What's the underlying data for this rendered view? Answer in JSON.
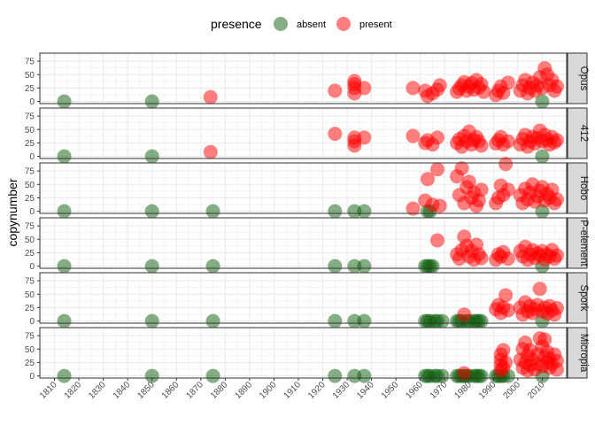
{
  "colors": {
    "absent": "#0b5e0b",
    "present": "#ff0000",
    "panel_bg": "#ffffff",
    "grid": "#ebebeb",
    "strip_bg": "#d9d9d9",
    "text": "#4d4d4d"
  },
  "chart_data": {
    "type": "scatter",
    "facet_by": "strain",
    "ylabel": "copynumber",
    "xlabel": "",
    "legend": {
      "title": "presence",
      "position": "top",
      "entries": [
        "absent",
        "present"
      ]
    },
    "xlim": [
      1804,
      2020
    ],
    "ylim": [
      -4,
      90
    ],
    "xticks": [
      1810,
      1820,
      1830,
      1840,
      1850,
      1860,
      1870,
      1880,
      1890,
      1900,
      1910,
      1920,
      1930,
      1940,
      1950,
      1960,
      1970,
      1980,
      1990,
      2000,
      2010
    ],
    "yticks": [
      0,
      25,
      50,
      75
    ],
    "point_alpha": 0.5,
    "panels": [
      {
        "label": "Opus",
        "absent": [
          [
            1814,
            0
          ],
          [
            1850,
            0
          ],
          [
            2010,
            0
          ]
        ],
        "present": [
          [
            1874,
            8
          ],
          [
            1925,
            20
          ],
          [
            1933,
            15
          ],
          [
            1933,
            25
          ],
          [
            1933,
            32
          ],
          [
            1933,
            38
          ],
          [
            1937,
            25
          ],
          [
            1957,
            25
          ],
          [
            1962,
            20
          ],
          [
            1963,
            10
          ],
          [
            1965,
            15
          ],
          [
            1967,
            22
          ],
          [
            1968,
            30
          ],
          [
            1975,
            18
          ],
          [
            1976,
            24
          ],
          [
            1977,
            30
          ],
          [
            1978,
            36
          ],
          [
            1979,
            20
          ],
          [
            1980,
            28
          ],
          [
            1981,
            34
          ],
          [
            1982,
            22
          ],
          [
            1983,
            40
          ],
          [
            1984,
            26
          ],
          [
            1985,
            32
          ],
          [
            1986,
            18
          ],
          [
            1991,
            12
          ],
          [
            1992,
            20
          ],
          [
            1993,
            28
          ],
          [
            1994,
            16
          ],
          [
            1996,
            35
          ],
          [
            2001,
            20
          ],
          [
            2002,
            30
          ],
          [
            2003,
            40
          ],
          [
            2004,
            15
          ],
          [
            2005,
            25
          ],
          [
            2006,
            35
          ],
          [
            2007,
            20
          ],
          [
            2008,
            30
          ],
          [
            2009,
            45
          ],
          [
            2010,
            25
          ],
          [
            2011,
            62
          ],
          [
            2012,
            50
          ],
          [
            2013,
            30
          ],
          [
            2014,
            40
          ],
          [
            2015,
            20
          ],
          [
            2016,
            28
          ]
        ]
      },
      {
        "label": "412",
        "absent": [
          [
            1814,
            0
          ],
          [
            1850,
            0
          ],
          [
            2010,
            0
          ]
        ],
        "present": [
          [
            1874,
            8
          ],
          [
            1925,
            42
          ],
          [
            1933,
            20
          ],
          [
            1933,
            28
          ],
          [
            1933,
            35
          ],
          [
            1937,
            35
          ],
          [
            1957,
            38
          ],
          [
            1962,
            25
          ],
          [
            1963,
            30
          ],
          [
            1965,
            22
          ],
          [
            1967,
            35
          ],
          [
            1975,
            25
          ],
          [
            1976,
            32
          ],
          [
            1977,
            18
          ],
          [
            1978,
            38
          ],
          [
            1979,
            28
          ],
          [
            1980,
            46
          ],
          [
            1981,
            22
          ],
          [
            1982,
            30
          ],
          [
            1983,
            36
          ],
          [
            1984,
            28
          ],
          [
            1985,
            20
          ],
          [
            1991,
            24
          ],
          [
            1992,
            30
          ],
          [
            1993,
            36
          ],
          [
            1994,
            22
          ],
          [
            1996,
            28
          ],
          [
            2001,
            22
          ],
          [
            2002,
            32
          ],
          [
            2003,
            40
          ],
          [
            2004,
            18
          ],
          [
            2005,
            28
          ],
          [
            2006,
            36
          ],
          [
            2007,
            24
          ],
          [
            2008,
            34
          ],
          [
            2009,
            48
          ],
          [
            2010,
            28
          ],
          [
            2011,
            40
          ],
          [
            2012,
            30
          ],
          [
            2013,
            22
          ],
          [
            2014,
            36
          ],
          [
            2015,
            26
          ],
          [
            2016,
            30
          ]
        ]
      },
      {
        "label": "Hobo",
        "absent": [
          [
            1814,
            0
          ],
          [
            1850,
            0
          ],
          [
            1875,
            0
          ],
          [
            1925,
            0
          ],
          [
            1933,
            0
          ],
          [
            1937,
            0
          ],
          [
            1963,
            0
          ],
          [
            1964,
            0
          ],
          [
            2010,
            0
          ]
        ],
        "present": [
          [
            1957,
            5
          ],
          [
            1962,
            20
          ],
          [
            1963,
            60
          ],
          [
            1965,
            12
          ],
          [
            1967,
            78
          ],
          [
            1968,
            10
          ],
          [
            1975,
            65
          ],
          [
            1976,
            30
          ],
          [
            1977,
            80
          ],
          [
            1978,
            15
          ],
          [
            1979,
            45
          ],
          [
            1980,
            55
          ],
          [
            1981,
            25
          ],
          [
            1982,
            35
          ],
          [
            1983,
            10
          ],
          [
            1984,
            20
          ],
          [
            1985,
            40
          ],
          [
            1991,
            15
          ],
          [
            1992,
            25
          ],
          [
            1993,
            48
          ],
          [
            1994,
            30
          ],
          [
            1995,
            88
          ],
          [
            1996,
            40
          ],
          [
            2001,
            30
          ],
          [
            2002,
            15
          ],
          [
            2003,
            42
          ],
          [
            2004,
            22
          ],
          [
            2005,
            35
          ],
          [
            2006,
            50
          ],
          [
            2007,
            18
          ],
          [
            2008,
            28
          ],
          [
            2009,
            38
          ],
          [
            2010,
            45
          ],
          [
            2011,
            20
          ],
          [
            2012,
            32
          ],
          [
            2013,
            25
          ],
          [
            2014,
            40
          ],
          [
            2015,
            15
          ],
          [
            2016,
            22
          ]
        ]
      },
      {
        "label": "P-element",
        "absent": [
          [
            1814,
            0
          ],
          [
            1850,
            0
          ],
          [
            1875,
            0
          ],
          [
            1925,
            0
          ],
          [
            1933,
            0
          ],
          [
            1937,
            0
          ],
          [
            1962,
            0
          ],
          [
            1963,
            0
          ],
          [
            1964,
            0
          ],
          [
            1965,
            0
          ],
          [
            2010,
            0
          ]
        ],
        "present": [
          [
            1967,
            48
          ],
          [
            1975,
            22
          ],
          [
            1976,
            14
          ],
          [
            1977,
            30
          ],
          [
            1978,
            55
          ],
          [
            1979,
            38
          ],
          [
            1980,
            18
          ],
          [
            1981,
            28
          ],
          [
            1982,
            12
          ],
          [
            1983,
            40
          ],
          [
            1984,
            22
          ],
          [
            1985,
            15
          ],
          [
            1991,
            12
          ],
          [
            1992,
            22
          ],
          [
            1993,
            18
          ],
          [
            1994,
            26
          ],
          [
            1996,
            14
          ],
          [
            2001,
            28
          ],
          [
            2002,
            18
          ],
          [
            2003,
            36
          ],
          [
            2004,
            12
          ],
          [
            2005,
            22
          ],
          [
            2006,
            30
          ],
          [
            2007,
            15
          ],
          [
            2008,
            24
          ],
          [
            2009,
            20
          ],
          [
            2010,
            28
          ],
          [
            2011,
            12
          ],
          [
            2012,
            22
          ],
          [
            2013,
            18
          ],
          [
            2014,
            30
          ],
          [
            2015,
            14
          ],
          [
            2016,
            20
          ]
        ]
      },
      {
        "label": "Spork",
        "absent": [
          [
            1814,
            0
          ],
          [
            1850,
            0
          ],
          [
            1875,
            0
          ],
          [
            1925,
            0
          ],
          [
            1933,
            0
          ],
          [
            1937,
            0
          ],
          [
            1962,
            0
          ],
          [
            1963,
            0
          ],
          [
            1964,
            0
          ],
          [
            1966,
            0
          ],
          [
            1967,
            0
          ],
          [
            1969,
            0
          ],
          [
            1975,
            0
          ],
          [
            1976,
            0
          ],
          [
            1977,
            0
          ],
          [
            1979,
            0
          ],
          [
            1980,
            0
          ],
          [
            1982,
            0
          ],
          [
            1983,
            0
          ],
          [
            1984,
            0
          ],
          [
            1985,
            0
          ],
          [
            2010,
            0
          ]
        ],
        "present": [
          [
            1978,
            12
          ],
          [
            1991,
            22
          ],
          [
            1992,
            30
          ],
          [
            1993,
            15
          ],
          [
            1994,
            25
          ],
          [
            1995,
            48
          ],
          [
            1996,
            20
          ],
          [
            2001,
            25
          ],
          [
            2002,
            12
          ],
          [
            2003,
            35
          ],
          [
            2004,
            18
          ],
          [
            2005,
            28
          ],
          [
            2006,
            15
          ],
          [
            2007,
            22
          ],
          [
            2008,
            30
          ],
          [
            2009,
            60
          ],
          [
            2010,
            18
          ],
          [
            2011,
            25
          ],
          [
            2012,
            14
          ],
          [
            2013,
            28
          ],
          [
            2014,
            20
          ],
          [
            2015,
            12
          ],
          [
            2016,
            24
          ]
        ]
      },
      {
        "label": "Micropia",
        "absent": [
          [
            1814,
            0
          ],
          [
            1850,
            0
          ],
          [
            1875,
            0
          ],
          [
            1925,
            0
          ],
          [
            1933,
            0
          ],
          [
            1937,
            0
          ],
          [
            1962,
            0
          ],
          [
            1963,
            0
          ],
          [
            1964,
            0
          ],
          [
            1966,
            0
          ],
          [
            1967,
            0
          ],
          [
            1969,
            0
          ],
          [
            1975,
            0
          ],
          [
            1976,
            0
          ],
          [
            1977,
            0
          ],
          [
            1978,
            0
          ],
          [
            1979,
            0
          ],
          [
            1980,
            0
          ],
          [
            1982,
            0
          ],
          [
            1983,
            0
          ],
          [
            1984,
            0
          ],
          [
            1985,
            0
          ],
          [
            1991,
            0
          ],
          [
            1992,
            0
          ],
          [
            1993,
            0
          ],
          [
            1994,
            0
          ],
          [
            1996,
            0
          ],
          [
            2010,
            0
          ]
        ],
        "present": [
          [
            1978,
            5
          ],
          [
            1993,
            10
          ],
          [
            1993,
            20
          ],
          [
            1993,
            30
          ],
          [
            1993,
            40
          ],
          [
            1994,
            48
          ],
          [
            1994,
            15
          ],
          [
            1995,
            25
          ],
          [
            2001,
            30
          ],
          [
            2002,
            50
          ],
          [
            2002,
            15
          ],
          [
            2003,
            62
          ],
          [
            2003,
            25
          ],
          [
            2004,
            38
          ],
          [
            2004,
            10
          ],
          [
            2005,
            48
          ],
          [
            2005,
            20
          ],
          [
            2006,
            30
          ],
          [
            2007,
            12
          ],
          [
            2008,
            40
          ],
          [
            2008,
            22
          ],
          [
            2009,
            70
          ],
          [
            2010,
            55
          ],
          [
            2010,
            18
          ],
          [
            2011,
            35
          ],
          [
            2011,
            68
          ],
          [
            2012,
            25
          ],
          [
            2012,
            45
          ],
          [
            2013,
            15
          ],
          [
            2013,
            32
          ],
          [
            2014,
            22
          ],
          [
            2015,
            40
          ],
          [
            2016,
            12
          ],
          [
            2016,
            28
          ]
        ]
      }
    ]
  }
}
